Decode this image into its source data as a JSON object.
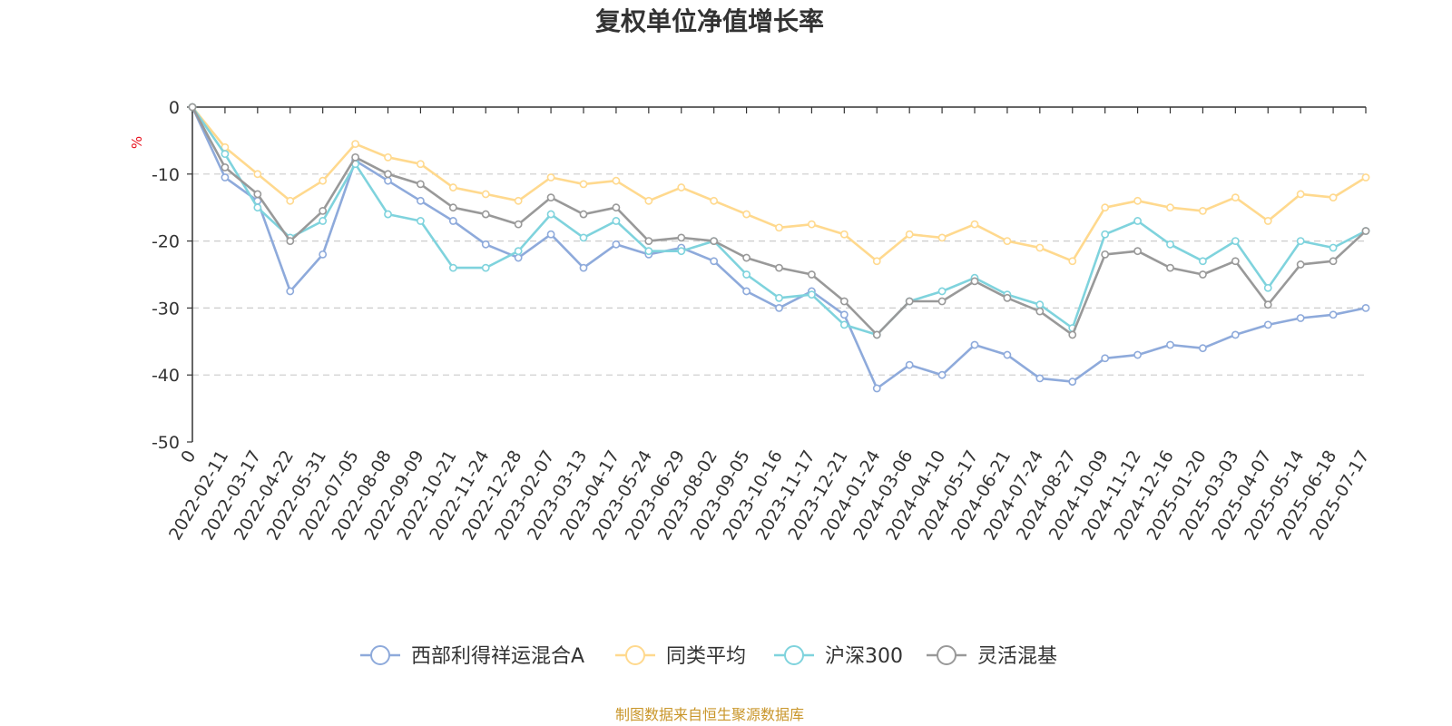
{
  "chart_data": {
    "type": "line",
    "title": "复权单位净值增长率",
    "ylabel": "%",
    "ylim": [
      -50,
      0
    ],
    "yticks": [
      0,
      -10,
      -20,
      -30,
      -40,
      -50
    ],
    "grid": true,
    "legend_position": "bottom",
    "source": "制图数据来自恒生聚源数据库",
    "x_labels": [
      "0",
      "2022-02-11",
      "2022-03-17",
      "2022-04-22",
      "2022-05-31",
      "2022-07-05",
      "2022-08-08",
      "2022-09-09",
      "2022-10-21",
      "2022-11-24",
      "2022-12-28",
      "2023-02-07",
      "2023-03-13",
      "2023-04-17",
      "2023-05-24",
      "2023-06-29",
      "2023-08-02",
      "2023-09-05",
      "2023-10-16",
      "2023-11-17",
      "2023-12-21",
      "2024-01-24",
      "2024-03-06",
      "2024-04-10",
      "2024-05-17",
      "2024-06-21",
      "2024-07-24",
      "2024-08-27",
      "2024-10-09",
      "2024-11-12",
      "2024-12-16",
      "2025-01-20",
      "2025-03-03",
      "2025-04-07",
      "2025-05-14",
      "2025-06-18",
      "2025-07-17"
    ],
    "series": [
      {
        "name": "西部利得祥运混合A",
        "color": "#8eaadb",
        "values": [
          0,
          -10.5,
          -14,
          -27.5,
          -22,
          -8,
          -11,
          -14,
          -17,
          -20.5,
          -22.5,
          -19,
          -24,
          -20.5,
          -22,
          -21,
          -23,
          -27.5,
          -30,
          -27.5,
          -31,
          -42,
          -38.5,
          -40,
          -35.5,
          -37,
          -40.5,
          -41,
          -37.5,
          -37,
          -35.5,
          -36,
          -34,
          -32.5,
          -31.5,
          -31,
          -30
        ]
      },
      {
        "name": "同类平均",
        "color": "#ffd98e",
        "values": [
          0,
          -6,
          -10,
          -14,
          -11,
          -5.5,
          -7.5,
          -8.5,
          -12,
          -13,
          -14,
          -10.5,
          -11.5,
          -11,
          -14,
          -12,
          -14,
          -16,
          -18,
          -17.5,
          -19,
          -23,
          -19,
          -19.5,
          -17.5,
          -20,
          -21,
          -23,
          -15,
          -14,
          -15,
          -15.5,
          -13.5,
          -17,
          -13,
          -13.5,
          -10.5
        ]
      },
      {
        "name": "沪深300",
        "color": "#7fd3dd",
        "values": [
          0,
          -7,
          -15,
          -19.5,
          -17,
          -8.5,
          -16,
          -17,
          -24,
          -24,
          -21.5,
          -16,
          -19.5,
          -17,
          -21.5,
          -21.5,
          -20,
          -25,
          -28.5,
          -28,
          -32.5,
          -34,
          -29,
          -27.5,
          -25.5,
          -28,
          -29.5,
          -33,
          -19,
          -17,
          -20.5,
          -23,
          -20,
          -27,
          -20,
          -21,
          -18.5
        ]
      },
      {
        "name": "灵活混基",
        "color": "#999999",
        "values": [
          0,
          -9,
          -13,
          -20,
          -15.5,
          -7.5,
          -10,
          -11.5,
          -15,
          -16,
          -17.5,
          -13.5,
          -16,
          -15,
          -20,
          -19.5,
          -20,
          -22.5,
          -24,
          -25,
          -29,
          -34,
          -29,
          -29,
          -26,
          -28.5,
          -30.5,
          -34,
          -22,
          -21.5,
          -24,
          -25,
          -23,
          -29.5,
          -23.5,
          -23,
          -18.5
        ]
      }
    ]
  }
}
